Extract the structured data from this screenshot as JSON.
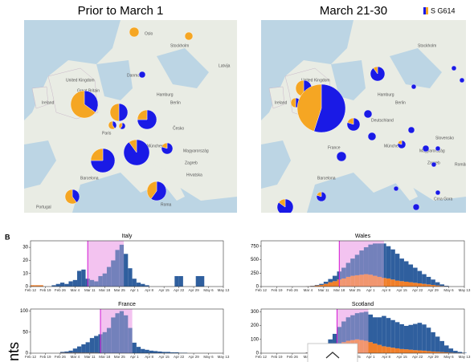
{
  "panel_label": "B",
  "legend": {
    "label": "S G614",
    "colors": [
      "#1a1ae6",
      "#f5a623"
    ]
  },
  "footer_text": "nts",
  "maps": [
    {
      "title": "Prior to March 1",
      "labels": [
        "Oslo",
        "Stockholm",
        "Latvija",
        "Danmark",
        "United Kingdom",
        "Great Britain",
        "Ireland",
        "Hamburg",
        "Berlin",
        "Paris",
        "Česko",
        "München",
        "Magyarország",
        "Zagreb",
        "Hrvatska",
        "Barcelona",
        "Portugal",
        "Roma"
      ],
      "pies": [
        {
          "g614": 0
        },
        {
          "g614": 0
        },
        {
          "g614": 1
        },
        {
          "g614": 0.35
        },
        {
          "g614": 0.5
        },
        {
          "g614": 0.4
        },
        {
          "g614": 0.6
        },
        {
          "g614": 0.75
        },
        {
          "g614": 0.75
        },
        {
          "g614": 0.9
        },
        {
          "g614": 0.8
        },
        {
          "g614": 0.6
        },
        {
          "g614": 0.4
        }
      ]
    },
    {
      "title": "March 21-30",
      "labels": [
        "Stockholm",
        "United Kingdom",
        "Ireland",
        "Hamburg",
        "Berlin",
        "Deutschland",
        "France",
        "München",
        "Magyarország",
        "Zagreb",
        "Slovensko",
        "România",
        "Barcelona",
        "Crna Gora"
      ],
      "pies": [
        {
          "g614": 0.5
        },
        {
          "g614": 0.5
        },
        {
          "g614": 0.5
        },
        {
          "g614": 0.9
        },
        {
          "g614": 0.55
        },
        {
          "g614": 0.8
        },
        {
          "g614": 1
        },
        {
          "g614": 1
        },
        {
          "g614": 1
        },
        {
          "g614": 1
        },
        {
          "g614": 0.8
        },
        {
          "g614": 1
        },
        {
          "g614": 1
        },
        {
          "g614": 1
        },
        {
          "g614": 0.85
        },
        {
          "g614": 0.8
        },
        {
          "g614": 1
        },
        {
          "g614": 1
        },
        {
          "g614": 1
        },
        {
          "g614": 1
        },
        {
          "g614": 1
        },
        {
          "g614": 1
        }
      ]
    }
  ],
  "chart_data": [
    {
      "type": "bar",
      "title": "Italy",
      "stacked": true,
      "ylim": [
        0,
        35
      ],
      "yticks": [
        0,
        10,
        20,
        30
      ],
      "xlim": [
        0,
        91
      ],
      "highlight": [
        27,
        44
      ],
      "vline": 27,
      "highlight_color": "#f3c4f0",
      "vline_color": "#d414d4",
      "xticks": [
        {
          "value": 0,
          "label": "Feb 12"
        },
        {
          "value": 7,
          "label": "Feb 19"
        },
        {
          "value": 14,
          "label": "Feb 26"
        },
        {
          "value": 21,
          "label": "Mar 4"
        },
        {
          "value": 28,
          "label": "Mar 11"
        },
        {
          "value": 35,
          "label": "Mar 18"
        },
        {
          "value": 42,
          "label": "Mar 25"
        },
        {
          "value": 49,
          "label": "Apr 1"
        },
        {
          "value": 56,
          "label": "Apr 8"
        },
        {
          "value": 63,
          "label": "Apr 15"
        },
        {
          "value": 70,
          "label": "Apr 22"
        },
        {
          "value": 77,
          "label": "Apr 29"
        },
        {
          "value": 84,
          "label": "May 6"
        },
        {
          "value": 91,
          "label": "May 13"
        }
      ],
      "x": [
        0,
        2,
        4,
        6,
        8,
        10,
        12,
        14,
        16,
        18,
        20,
        22,
        24,
        26,
        28,
        30,
        32,
        34,
        36,
        38,
        40,
        42,
        44,
        46,
        48,
        50,
        52,
        54,
        56,
        58,
        60,
        62,
        64,
        66,
        68,
        70,
        72,
        74,
        76,
        78,
        80,
        82,
        84,
        86,
        88,
        90
      ],
      "series": [
        {
          "color": "#f07f2a",
          "values": [
            1,
            1,
            1,
            0,
            0,
            0,
            0,
            0,
            0,
            0,
            0,
            0,
            0,
            0,
            0,
            0,
            0,
            0,
            0,
            0,
            0,
            0,
            0,
            0,
            0,
            0,
            0,
            0,
            0,
            0,
            0,
            0,
            0,
            0,
            0,
            0,
            0,
            0,
            0,
            0,
            0,
            0,
            0,
            0,
            0,
            0
          ]
        },
        {
          "color": "#2f5f9e",
          "values": [
            0,
            0,
            0,
            0,
            0,
            1,
            2,
            3,
            2,
            4,
            5,
            12,
            13,
            6,
            5,
            4,
            8,
            10,
            15,
            20,
            28,
            32,
            25,
            14,
            6,
            3,
            2,
            1,
            0,
            0,
            0,
            0,
            0,
            0,
            8,
            8,
            0,
            0,
            0,
            8,
            8,
            0,
            0,
            0,
            0,
            0
          ]
        }
      ]
    },
    {
      "type": "bar",
      "title": "Wales",
      "stacked": true,
      "ylim": [
        0,
        850
      ],
      "yticks": [
        0,
        250,
        500,
        750
      ],
      "xlim": [
        0,
        91
      ],
      "highlight": [
        35,
        55
      ],
      "vline": 35,
      "highlight_color": "#f3c4f0",
      "vline_color": "#d414d4",
      "xticks": [
        {
          "value": 0,
          "label": "Feb 12"
        },
        {
          "value": 7,
          "label": "Feb 19"
        },
        {
          "value": 14,
          "label": "Feb 26"
        },
        {
          "value": 21,
          "label": "Mar 4"
        },
        {
          "value": 28,
          "label": "Mar 11"
        },
        {
          "value": 35,
          "label": "Mar 18"
        },
        {
          "value": 42,
          "label": "Mar 25"
        },
        {
          "value": 49,
          "label": "Apr 1"
        },
        {
          "value": 56,
          "label": "Apr 8"
        },
        {
          "value": 63,
          "label": "Apr 15"
        },
        {
          "value": 70,
          "label": "Apr 22"
        },
        {
          "value": 77,
          "label": "Apr 29"
        },
        {
          "value": 84,
          "label": "May 6"
        },
        {
          "value": 91,
          "label": "May 13"
        }
      ],
      "x": [
        0,
        2,
        4,
        6,
        8,
        10,
        12,
        14,
        16,
        18,
        20,
        22,
        24,
        26,
        28,
        30,
        32,
        34,
        36,
        38,
        40,
        42,
        44,
        46,
        48,
        50,
        52,
        54,
        56,
        58,
        60,
        62,
        64,
        66,
        68,
        70,
        72,
        74,
        76,
        78,
        80,
        82,
        84,
        86,
        88,
        90
      ],
      "series": [
        {
          "color": "#f07f2a",
          "values": [
            0,
            0,
            0,
            0,
            0,
            0,
            0,
            0,
            0,
            0,
            3,
            10,
            20,
            30,
            50,
            80,
            100,
            130,
            150,
            180,
            200,
            210,
            220,
            230,
            220,
            200,
            180,
            160,
            150,
            130,
            110,
            100,
            90,
            80,
            70,
            60,
            50,
            40,
            30,
            20,
            10,
            5,
            0,
            0,
            0,
            0
          ]
        },
        {
          "color": "#2f5f9e",
          "values": [
            0,
            0,
            0,
            0,
            0,
            0,
            0,
            0,
            0,
            0,
            2,
            5,
            10,
            20,
            40,
            60,
            100,
            150,
            200,
            260,
            320,
            380,
            450,
            500,
            560,
            600,
            620,
            640,
            600,
            560,
            500,
            420,
            380,
            330,
            280,
            230,
            180,
            140,
            100,
            60,
            30,
            10,
            0,
            0,
            0,
            0
          ]
        }
      ]
    },
    {
      "type": "bar",
      "title": "France",
      "stacked": true,
      "ylim": [
        0,
        105
      ],
      "yticks": [
        0,
        50,
        100
      ],
      "xlim": [
        0,
        91
      ],
      "highlight": [
        33,
        48
      ],
      "vline": 33,
      "highlight_color": "#f3c4f0",
      "vline_color": "#d414d4",
      "xticks": [
        {
          "value": 0,
          "label": "Feb 12"
        },
        {
          "value": 7,
          "label": "Feb 19"
        },
        {
          "value": 14,
          "label": "Feb 26"
        },
        {
          "value": 21,
          "label": "Mar 4"
        },
        {
          "value": 28,
          "label": "Mar 11"
        },
        {
          "value": 35,
          "label": "Mar 18"
        },
        {
          "value": 42,
          "label": "Mar 25"
        },
        {
          "value": 49,
          "label": "Apr 1"
        },
        {
          "value": 56,
          "label": "Apr 8"
        },
        {
          "value": 63,
          "label": "Apr 15"
        },
        {
          "value": 70,
          "label": "Apr 22"
        },
        {
          "value": 77,
          "label": "Apr 29"
        },
        {
          "value": 84,
          "label": "May 6"
        },
        {
          "value": 91,
          "label": "May 13"
        }
      ],
      "x": [
        0,
        2,
        4,
        6,
        8,
        10,
        12,
        14,
        16,
        18,
        20,
        22,
        24,
        26,
        28,
        30,
        32,
        34,
        36,
        38,
        40,
        42,
        44,
        46,
        48,
        50,
        52,
        54,
        56,
        58,
        60,
        62,
        64,
        66,
        68,
        70,
        72,
        74,
        76,
        78,
        80,
        82,
        84,
        86,
        88,
        90
      ],
      "series": [
        {
          "color": "#f07f2a",
          "values": [
            0,
            0,
            0,
            0,
            0,
            0,
            0,
            1,
            1,
            1,
            1,
            1,
            1,
            1,
            1,
            1,
            0,
            0,
            0,
            0,
            0,
            0,
            0,
            0,
            0,
            0,
            0,
            0,
            0,
            0,
            0,
            0,
            0,
            0,
            0,
            0,
            0,
            0,
            0,
            0,
            0,
            0,
            0,
            0,
            0,
            0
          ]
        },
        {
          "color": "#2f5f9e",
          "values": [
            0,
            0,
            0,
            0,
            0,
            0,
            0,
            2,
            3,
            5,
            10,
            15,
            20,
            25,
            35,
            40,
            45,
            50,
            60,
            85,
            95,
            100,
            90,
            60,
            25,
            15,
            10,
            8,
            6,
            5,
            4,
            3,
            3,
            2,
            2,
            1,
            1,
            0,
            0,
            0,
            0,
            0,
            0,
            0,
            0,
            0
          ]
        }
      ]
    },
    {
      "type": "bar",
      "title": "Scotland",
      "stacked": true,
      "ylim": [
        0,
        320
      ],
      "yticks": [
        0,
        100,
        200,
        300
      ],
      "xlim": [
        0,
        91
      ],
      "highlight": [
        34,
        48
      ],
      "vline": 34,
      "highlight_color": "#f3c4f0",
      "vline_color": "#d414d4",
      "xticks": [
        {
          "value": 0,
          "label": "Feb 12"
        },
        {
          "value": 7,
          "label": "Feb 19"
        },
        {
          "value": 14,
          "label": "Feb 26"
        },
        {
          "value": 21,
          "label": "Mar 4"
        },
        {
          "value": 28,
          "label": "Mar 11"
        },
        {
          "value": 35,
          "label": "Mar 18"
        },
        {
          "value": 42,
          "label": "Mar 25"
        },
        {
          "value": 49,
          "label": "Apr 1"
        },
        {
          "value": 56,
          "label": "Apr 8"
        },
        {
          "value": 63,
          "label": "Apr 15"
        },
        {
          "value": 70,
          "label": "Apr 22"
        },
        {
          "value": 77,
          "label": "Apr 29"
        },
        {
          "value": 84,
          "label": "May 6"
        },
        {
          "value": 91,
          "label": "May 13"
        }
      ],
      "x": [
        0,
        2,
        4,
        6,
        8,
        10,
        12,
        14,
        16,
        18,
        20,
        22,
        24,
        26,
        28,
        30,
        32,
        34,
        36,
        38,
        40,
        42,
        44,
        46,
        48,
        50,
        52,
        54,
        56,
        58,
        60,
        62,
        64,
        66,
        68,
        70,
        72,
        74,
        76,
        78,
        80,
        82,
        84,
        86,
        88,
        90
      ],
      "series": [
        {
          "color": "#f07f2a",
          "values": [
            0,
            0,
            0,
            0,
            0,
            0,
            0,
            0,
            0,
            0,
            3,
            8,
            15,
            25,
            35,
            50,
            60,
            70,
            80,
            90,
            95,
            100,
            95,
            90,
            80,
            70,
            60,
            50,
            45,
            40,
            35,
            30,
            28,
            25,
            22,
            20,
            18,
            15,
            12,
            10,
            8,
            6,
            4,
            2,
            1,
            0
          ]
        },
        {
          "color": "#2f5f9e",
          "values": [
            0,
            0,
            0,
            0,
            0,
            0,
            0,
            0,
            0,
            0,
            2,
            5,
            10,
            20,
            30,
            50,
            80,
            120,
            150,
            170,
            180,
            190,
            200,
            210,
            200,
            190,
            200,
            220,
            210,
            200,
            190,
            180,
            170,
            180,
            190,
            200,
            190,
            170,
            140,
            110,
            80,
            50,
            30,
            15,
            8,
            3
          ]
        }
      ]
    }
  ]
}
